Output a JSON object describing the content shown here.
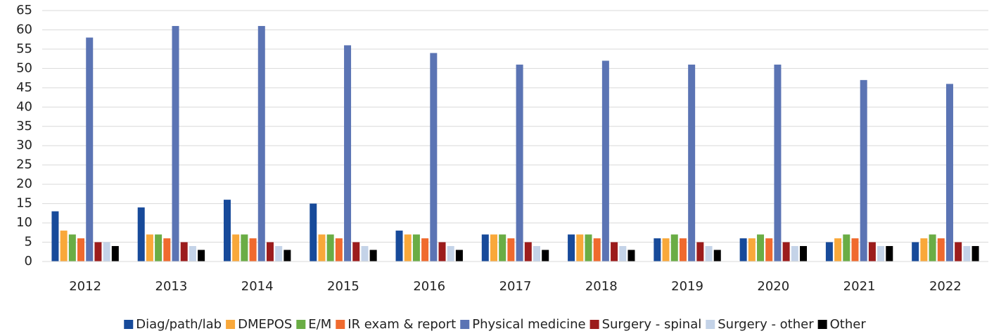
{
  "chart_data": {
    "type": "bar",
    "categories": [
      "2012",
      "2013",
      "2014",
      "2015",
      "2016",
      "2017",
      "2018",
      "2019",
      "2020",
      "2021",
      "2022"
    ],
    "series": [
      {
        "name": "Diag/path/lab",
        "color": "#174a9a",
        "values": [
          13,
          14,
          16,
          15,
          8,
          7,
          7,
          6,
          6,
          5,
          5
        ]
      },
      {
        "name": "DMEPOS",
        "color": "#f9a83a",
        "values": [
          8,
          7,
          7,
          7,
          7,
          7,
          7,
          6,
          6,
          6,
          6
        ]
      },
      {
        "name": "E/M",
        "color": "#6aad45",
        "values": [
          7,
          7,
          7,
          7,
          7,
          7,
          7,
          7,
          7,
          7,
          7
        ]
      },
      {
        "name": "IR exam & report",
        "color": "#f06a2e",
        "values": [
          6,
          6,
          6,
          6,
          6,
          6,
          6,
          6,
          6,
          6,
          6
        ]
      },
      {
        "name": "Physical medicine",
        "color": "#5b74b4",
        "values": [
          58,
          61,
          61,
          56,
          54,
          51,
          52,
          51,
          51,
          47,
          46
        ]
      },
      {
        "name": "Surgery - spinal",
        "color": "#9c1c1c",
        "values": [
          5,
          5,
          5,
          5,
          5,
          5,
          5,
          5,
          5,
          5,
          5
        ]
      },
      {
        "name": "Surgery - other",
        "color": "#c4d3e8",
        "values": [
          5,
          4,
          4,
          4,
          4,
          4,
          4,
          4,
          4,
          4,
          4
        ]
      },
      {
        "name": "Other",
        "color": "#000000",
        "values": [
          4,
          3,
          3,
          3,
          3,
          3,
          3,
          3,
          4,
          4,
          4
        ]
      }
    ],
    "ylim": [
      0,
      65
    ],
    "yticks": [
      0,
      5,
      10,
      15,
      20,
      25,
      30,
      35,
      40,
      45,
      50,
      55,
      60,
      65
    ],
    "grid": true,
    "legend": "bottom"
  }
}
